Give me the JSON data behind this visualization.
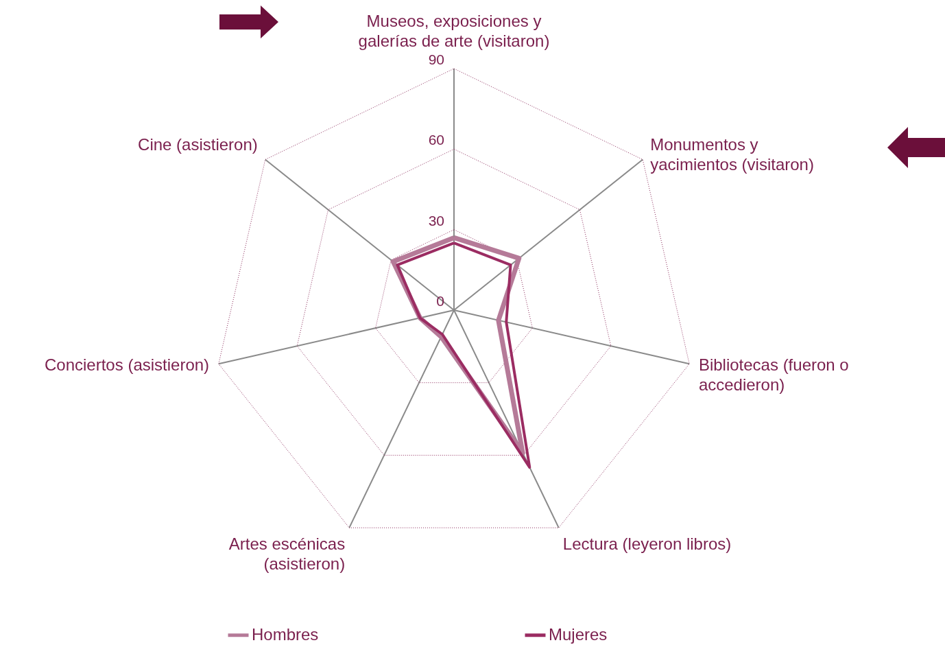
{
  "chart_data": {
    "type": "radar",
    "categories": [
      "Museos, exposiciones y\ngalerías de arte (visitaron)",
      "Monumentos y\nyacimientos (visitaron)",
      "Bibliotecas (fueron o\naccedieron)",
      "Lectura (leyeron libros)",
      "Artes escénicas\n(asistieron)",
      "Conciertos  (asistieron)",
      "Cine  (asistieron)"
    ],
    "series": [
      {
        "name": "Hombres",
        "color": "#b57a98",
        "values": [
          27,
          31,
          17,
          59,
          11,
          13,
          29
        ]
      },
      {
        "name": "Mujeres",
        "color": "#9b2c62",
        "values": [
          25,
          27,
          20,
          65,
          10,
          13,
          27
        ]
      }
    ],
    "ylim": [
      0,
      90
    ],
    "yticks": [
      0,
      30,
      60,
      90
    ],
    "grid": true,
    "legend": "bottom"
  }
}
